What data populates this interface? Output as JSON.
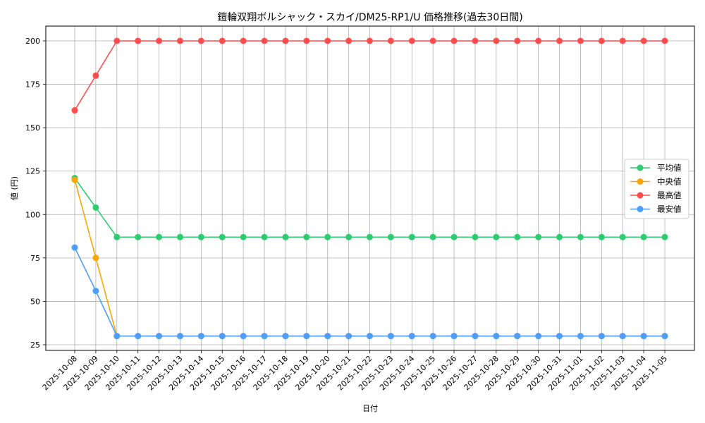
{
  "chart_data": {
    "type": "line",
    "title": "鎧輪双翔ボルシャック・スカイ/DM25-RP1/U 価格推移(過去30日間)",
    "xlabel": "日付",
    "ylabel": "値 (円)",
    "ylim": [
      21,
      208
    ],
    "yticks": [
      25,
      50,
      75,
      100,
      125,
      150,
      175,
      200
    ],
    "grid": true,
    "legend_position": "center right",
    "x": [
      "2025-10-08",
      "2025-10-09",
      "2025-10-10",
      "2025-10-11",
      "2025-10-12",
      "2025-10-13",
      "2025-10-14",
      "2025-10-15",
      "2025-10-16",
      "2025-10-17",
      "2025-10-18",
      "2025-10-19",
      "2025-10-20",
      "2025-10-21",
      "2025-10-22",
      "2025-10-23",
      "2025-10-24",
      "2025-10-25",
      "2025-10-26",
      "2025-10-27",
      "2025-10-28",
      "2025-10-29",
      "2025-10-30",
      "2025-10-31",
      "2025-11-01",
      "2025-11-02",
      "2025-11-03",
      "2025-11-04",
      "2025-11-05"
    ],
    "series": [
      {
        "name": "平均値",
        "color": "#2ecc71",
        "values": [
          121,
          104,
          87,
          87,
          87,
          87,
          87,
          87,
          87,
          87,
          87,
          87,
          87,
          87,
          87,
          87,
          87,
          87,
          87,
          87,
          87,
          87,
          87,
          87,
          87,
          87,
          87,
          87,
          87
        ]
      },
      {
        "name": "中央値",
        "color": "#ffa500",
        "values": [
          120,
          75,
          30,
          30,
          30,
          30,
          30,
          30,
          30,
          30,
          30,
          30,
          30,
          30,
          30,
          30,
          30,
          30,
          30,
          30,
          30,
          30,
          30,
          30,
          30,
          30,
          30,
          30,
          30
        ]
      },
      {
        "name": "最高値",
        "color": "#ff4d4d",
        "values": [
          160,
          180,
          200,
          200,
          200,
          200,
          200,
          200,
          200,
          200,
          200,
          200,
          200,
          200,
          200,
          200,
          200,
          200,
          200,
          200,
          200,
          200,
          200,
          200,
          200,
          200,
          200,
          200,
          200
        ]
      },
      {
        "name": "最安値",
        "color": "#4d9eff",
        "values": [
          81,
          56,
          30,
          30,
          30,
          30,
          30,
          30,
          30,
          30,
          30,
          30,
          30,
          30,
          30,
          30,
          30,
          30,
          30,
          30,
          30,
          30,
          30,
          30,
          30,
          30,
          30,
          30,
          30
        ]
      }
    ]
  },
  "colors": {
    "grid": "#b0b0b0",
    "axis": "#000000",
    "legend_border": "#cccccc"
  }
}
